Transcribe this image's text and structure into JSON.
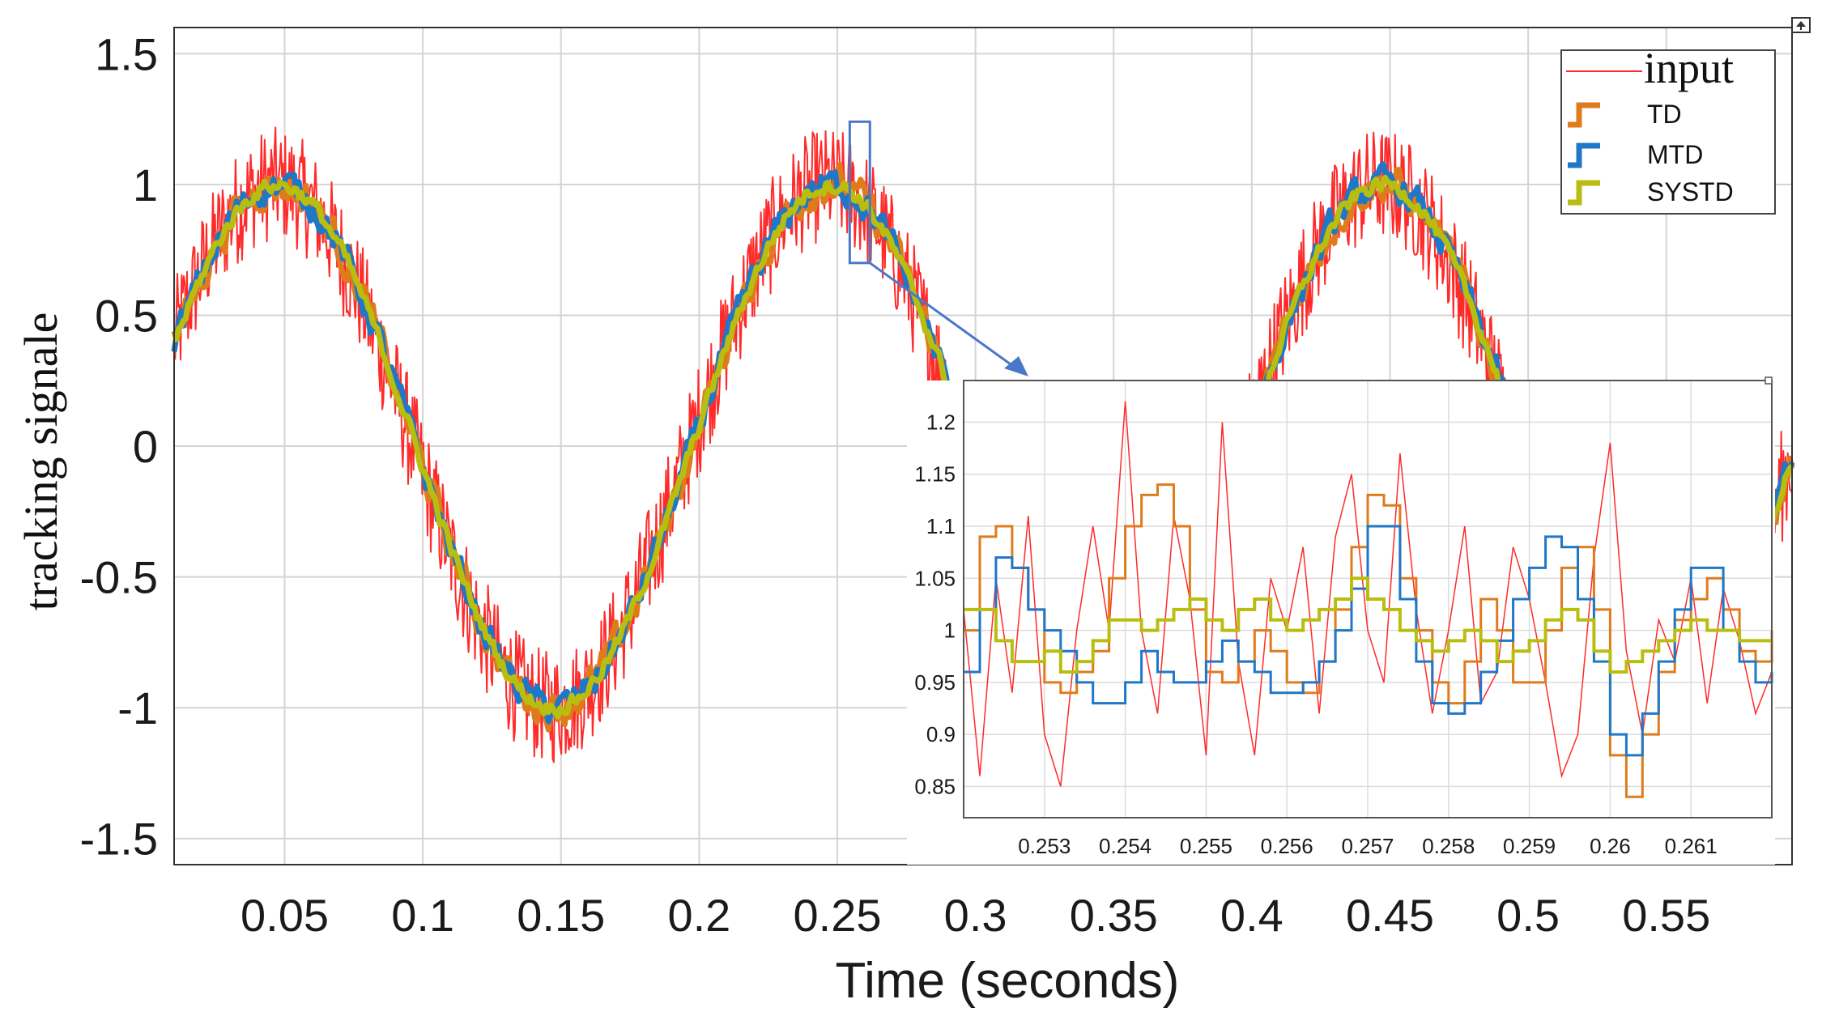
{
  "chart_data": [
    {
      "type": "line",
      "title": "",
      "xlabel": "Time (seconds)",
      "ylabel": "tracking signale",
      "xlim": [
        0.01,
        0.5955
      ],
      "ylim": [
        -1.6,
        1.6
      ],
      "grid": true,
      "x_ticks": [
        "0.05",
        "0.1",
        "0.15",
        "0.2",
        "0.25",
        "0.3",
        "0.35",
        "0.4",
        "0.45",
        "0.5",
        "0.55"
      ],
      "y_ticks": [
        "1.5",
        "1",
        "0.5",
        "0",
        "-0.5",
        "-1",
        "-1.5"
      ],
      "signal": {
        "form": "sine",
        "amplitude": 1,
        "frequency_hz": 5,
        "t_start": 0.01,
        "t_end": 0.5955
      },
      "series": [
        {
          "name": "input",
          "color": "#ff2a2a",
          "noise_amplitude": 0.22
        },
        {
          "name": "TD",
          "color": "#e07b1c",
          "noise_amplitude": 0.12
        },
        {
          "name": "MTD",
          "color": "#1f77c8",
          "noise_amplitude": 0.1
        },
        {
          "name": "SYSTD",
          "color": "#b8bd10",
          "noise_amplitude": 0.05
        }
      ],
      "legend": {
        "position": "top-right",
        "entries": [
          "input",
          "TD",
          "MTD",
          "SYSTD"
        ]
      },
      "zoom_region": {
        "x": [
          0.2545,
          0.2618
        ],
        "y": [
          0.7,
          1.24
        ]
      }
    },
    {
      "type": "line",
      "title": "",
      "xlabel": "",
      "ylabel": "",
      "xlim": [
        0.252,
        0.262
      ],
      "ylim": [
        0.82,
        1.24
      ],
      "grid": true,
      "x_ticks": [
        "0.253",
        "0.254",
        "0.255",
        "0.256",
        "0.257",
        "0.258",
        "0.259",
        "0.26",
        "0.261"
      ],
      "y_ticks": [
        "1.2",
        "1.15",
        "1.1",
        "1.05",
        "1",
        "0.95",
        "0.9",
        "0.85"
      ],
      "series": [
        {
          "name": "input",
          "color": "#ff2a2a",
          "points": [
            [
              0.252,
              1.02
            ],
            [
              0.2522,
              0.86
            ],
            [
              0.2524,
              1.05
            ],
            [
              0.2526,
              0.94
            ],
            [
              0.2528,
              1.11
            ],
            [
              0.253,
              0.9
            ],
            [
              0.2532,
              0.85
            ],
            [
              0.2534,
              1.0
            ],
            [
              0.2536,
              1.1
            ],
            [
              0.2538,
              1.0
            ],
            [
              0.254,
              1.22
            ],
            [
              0.2542,
              1.0
            ],
            [
              0.2544,
              0.92
            ],
            [
              0.2546,
              1.11
            ],
            [
              0.2548,
              1.03
            ],
            [
              0.255,
              0.88
            ],
            [
              0.2552,
              1.2
            ],
            [
              0.2554,
              0.97
            ],
            [
              0.2556,
              0.88
            ],
            [
              0.2558,
              1.05
            ],
            [
              0.256,
              1.0
            ],
            [
              0.2562,
              1.08
            ],
            [
              0.2564,
              0.92
            ],
            [
              0.2566,
              1.09
            ],
            [
              0.2568,
              1.15
            ],
            [
              0.257,
              1.0
            ],
            [
              0.2572,
              0.95
            ],
            [
              0.2574,
              1.17
            ],
            [
              0.2576,
              1.02
            ],
            [
              0.2578,
              0.92
            ],
            [
              0.258,
              1.0
            ],
            [
              0.2582,
              1.1
            ],
            [
              0.2584,
              0.93
            ],
            [
              0.2586,
              0.96
            ],
            [
              0.2588,
              1.08
            ],
            [
              0.259,
              1.03
            ],
            [
              0.2592,
              0.95
            ],
            [
              0.2594,
              0.86
            ],
            [
              0.2596,
              0.9
            ],
            [
              0.2598,
              1.07
            ],
            [
              0.26,
              1.18
            ],
            [
              0.2602,
              0.98
            ],
            [
              0.2604,
              0.9
            ],
            [
              0.2606,
              1.01
            ],
            [
              0.2608,
              0.97
            ],
            [
              0.261,
              1.05
            ],
            [
              0.2612,
              0.93
            ],
            [
              0.2614,
              1.04
            ],
            [
              0.2616,
              0.99
            ],
            [
              0.2618,
              0.92
            ],
            [
              0.262,
              0.96
            ]
          ]
        },
        {
          "name": "TD",
          "color": "#e07b1c",
          "points": [
            [
              0.252,
              1.0
            ],
            [
              0.2522,
              1.09
            ],
            [
              0.2524,
              1.1
            ],
            [
              0.2526,
              1.06
            ],
            [
              0.2528,
              1.02
            ],
            [
              0.253,
              0.95
            ],
            [
              0.2532,
              0.94
            ],
            [
              0.2534,
              0.96
            ],
            [
              0.2536,
              0.98
            ],
            [
              0.2538,
              1.05
            ],
            [
              0.254,
              1.1
            ],
            [
              0.2542,
              1.13
            ],
            [
              0.2544,
              1.14
            ],
            [
              0.2546,
              1.1
            ],
            [
              0.2548,
              1.02
            ],
            [
              0.255,
              0.96
            ],
            [
              0.2552,
              0.95
            ],
            [
              0.2554,
              0.97
            ],
            [
              0.2556,
              1.0
            ],
            [
              0.2558,
              0.98
            ],
            [
              0.256,
              0.95
            ],
            [
              0.2562,
              0.94
            ],
            [
              0.2564,
              0.97
            ],
            [
              0.2566,
              1.02
            ],
            [
              0.2568,
              1.08
            ],
            [
              0.257,
              1.13
            ],
            [
              0.2572,
              1.12
            ],
            [
              0.2574,
              1.05
            ],
            [
              0.2576,
              1.0
            ],
            [
              0.2578,
              0.95
            ],
            [
              0.258,
              0.93
            ],
            [
              0.2582,
              0.97
            ],
            [
              0.2584,
              1.03
            ],
            [
              0.2586,
              1.0
            ],
            [
              0.2588,
              0.95
            ],
            [
              0.259,
              0.95
            ],
            [
              0.2592,
              1.0
            ],
            [
              0.2594,
              1.06
            ],
            [
              0.2596,
              1.08
            ],
            [
              0.2598,
              1.02
            ],
            [
              0.26,
              0.88
            ],
            [
              0.2602,
              0.84
            ],
            [
              0.2604,
              0.9
            ],
            [
              0.2606,
              0.96
            ],
            [
              0.2608,
              1.01
            ],
            [
              0.261,
              1.03
            ],
            [
              0.2612,
              1.05
            ],
            [
              0.2614,
              1.02
            ],
            [
              0.2616,
              0.98
            ],
            [
              0.2618,
              0.97
            ],
            [
              0.262,
              1.0
            ]
          ]
        },
        {
          "name": "MTD",
          "color": "#1f77c8",
          "points": [
            [
              0.252,
              0.96
            ],
            [
              0.2522,
              1.02
            ],
            [
              0.2524,
              1.07
            ],
            [
              0.2526,
              1.06
            ],
            [
              0.2528,
              1.02
            ],
            [
              0.253,
              1.0
            ],
            [
              0.2532,
              0.98
            ],
            [
              0.2534,
              0.95
            ],
            [
              0.2536,
              0.93
            ],
            [
              0.2538,
              0.93
            ],
            [
              0.254,
              0.95
            ],
            [
              0.2542,
              0.98
            ],
            [
              0.2544,
              0.96
            ],
            [
              0.2546,
              0.95
            ],
            [
              0.2548,
              0.95
            ],
            [
              0.255,
              0.97
            ],
            [
              0.2552,
              0.99
            ],
            [
              0.2554,
              0.97
            ],
            [
              0.2556,
              0.96
            ],
            [
              0.2558,
              0.94
            ],
            [
              0.256,
              0.94
            ],
            [
              0.2562,
              0.95
            ],
            [
              0.2564,
              0.97
            ],
            [
              0.2566,
              1.0
            ],
            [
              0.2568,
              1.04
            ],
            [
              0.257,
              1.1
            ],
            [
              0.2572,
              1.1
            ],
            [
              0.2574,
              1.03
            ],
            [
              0.2576,
              0.97
            ],
            [
              0.2578,
              0.93
            ],
            [
              0.258,
              0.92
            ],
            [
              0.2582,
              0.93
            ],
            [
              0.2584,
              0.96
            ],
            [
              0.2586,
              0.99
            ],
            [
              0.2588,
              1.03
            ],
            [
              0.259,
              1.06
            ],
            [
              0.2592,
              1.09
            ],
            [
              0.2594,
              1.08
            ],
            [
              0.2596,
              1.03
            ],
            [
              0.2598,
              0.97
            ],
            [
              0.26,
              0.9
            ],
            [
              0.2602,
              0.88
            ],
            [
              0.2604,
              0.92
            ],
            [
              0.2606,
              0.97
            ],
            [
              0.2608,
              1.02
            ],
            [
              0.261,
              1.06
            ],
            [
              0.2612,
              1.06
            ],
            [
              0.2614,
              1.0
            ],
            [
              0.2616,
              0.97
            ],
            [
              0.2618,
              0.95
            ],
            [
              0.262,
              0.96
            ]
          ]
        },
        {
          "name": "SYSTD",
          "color": "#b8bd10",
          "points": [
            [
              0.252,
              1.02
            ],
            [
              0.2522,
              1.02
            ],
            [
              0.2524,
              0.99
            ],
            [
              0.2526,
              0.97
            ],
            [
              0.2528,
              0.97
            ],
            [
              0.253,
              0.98
            ],
            [
              0.2532,
              0.96
            ],
            [
              0.2534,
              0.97
            ],
            [
              0.2536,
              0.99
            ],
            [
              0.2538,
              1.01
            ],
            [
              0.254,
              1.01
            ],
            [
              0.2542,
              1.0
            ],
            [
              0.2544,
              1.01
            ],
            [
              0.2546,
              1.02
            ],
            [
              0.2548,
              1.03
            ],
            [
              0.255,
              1.01
            ],
            [
              0.2552,
              1.0
            ],
            [
              0.2554,
              1.02
            ],
            [
              0.2556,
              1.03
            ],
            [
              0.2558,
              1.01
            ],
            [
              0.256,
              1.0
            ],
            [
              0.2562,
              1.01
            ],
            [
              0.2564,
              1.02
            ],
            [
              0.2566,
              1.03
            ],
            [
              0.2568,
              1.05
            ],
            [
              0.257,
              1.03
            ],
            [
              0.2572,
              1.02
            ],
            [
              0.2574,
              1.0
            ],
            [
              0.2576,
              0.99
            ],
            [
              0.2578,
              0.98
            ],
            [
              0.258,
              0.99
            ],
            [
              0.2582,
              1.0
            ],
            [
              0.2584,
              0.99
            ],
            [
              0.2586,
              0.97
            ],
            [
              0.2588,
              0.98
            ],
            [
              0.259,
              0.99
            ],
            [
              0.2592,
              1.01
            ],
            [
              0.2594,
              1.02
            ],
            [
              0.2596,
              1.01
            ],
            [
              0.2598,
              0.98
            ],
            [
              0.26,
              0.96
            ],
            [
              0.2602,
              0.97
            ],
            [
              0.2604,
              0.98
            ],
            [
              0.2606,
              0.99
            ],
            [
              0.2608,
              1.0
            ],
            [
              0.261,
              1.01
            ],
            [
              0.2612,
              1.0
            ],
            [
              0.2614,
              1.0
            ],
            [
              0.2616,
              0.99
            ],
            [
              0.2618,
              0.99
            ],
            [
              0.262,
              0.99
            ]
          ]
        }
      ]
    }
  ]
}
